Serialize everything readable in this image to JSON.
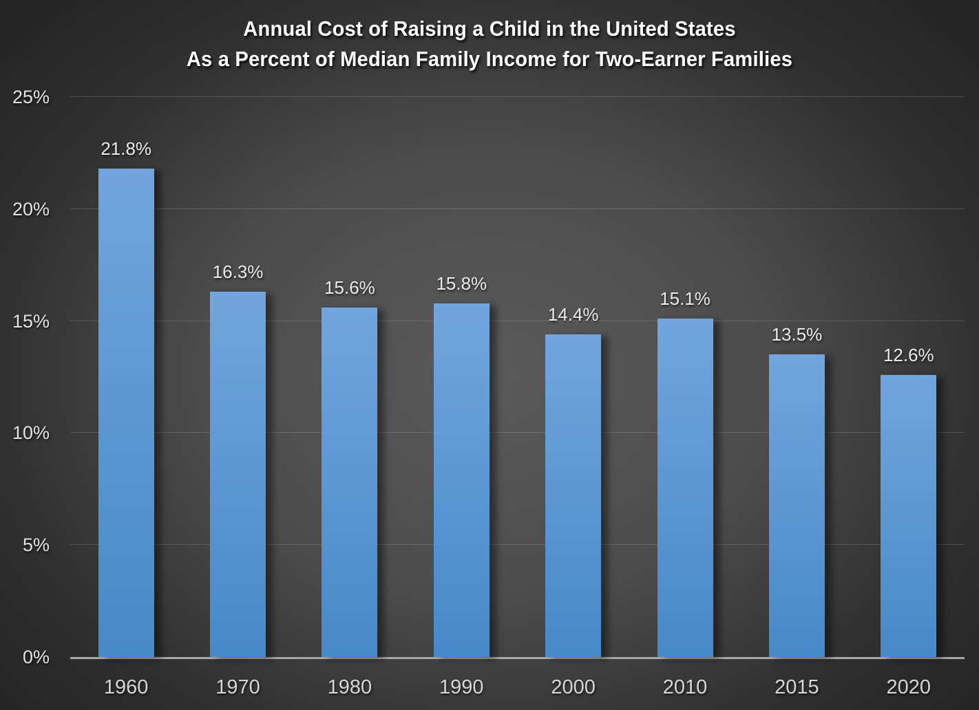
{
  "title": {
    "line1": "Annual Cost of Raising a Child in the United States",
    "line2": "As a Percent of Median Family Income for Two-Earner Families"
  },
  "chart_data": {
    "type": "bar",
    "title": "Annual Cost of Raising a Child in the United States As a Percent of Median Family Income for Two-Earner Families",
    "categories": [
      "1960",
      "1970",
      "1980",
      "1990",
      "2000",
      "2010",
      "2015",
      "2020"
    ],
    "values": [
      21.8,
      16.3,
      15.6,
      15.8,
      14.4,
      15.1,
      13.5,
      12.6
    ],
    "data_labels": [
      "21.8%",
      "16.3%",
      "15.6%",
      "15.8%",
      "14.4%",
      "15.1%",
      "13.5%",
      "12.6%"
    ],
    "xlabel": "",
    "ylabel": "",
    "ylim": [
      0,
      25
    ],
    "ytick_interval": 5,
    "ytick_labels": [
      "0%",
      "5%",
      "10%",
      "15%",
      "20%",
      "25%"
    ],
    "grid": true,
    "legend": false,
    "colors": {
      "bar_top": "#72a5dd",
      "bar_bottom": "#4689c9",
      "background_center": "#5a5a5a",
      "background_edge": "#262626",
      "gridline": "rgba(255,255,255,0.16)",
      "axis_line": "#a8a8a8",
      "title_text": "#ffffff",
      "label_text": "#e2e2e2"
    }
  }
}
